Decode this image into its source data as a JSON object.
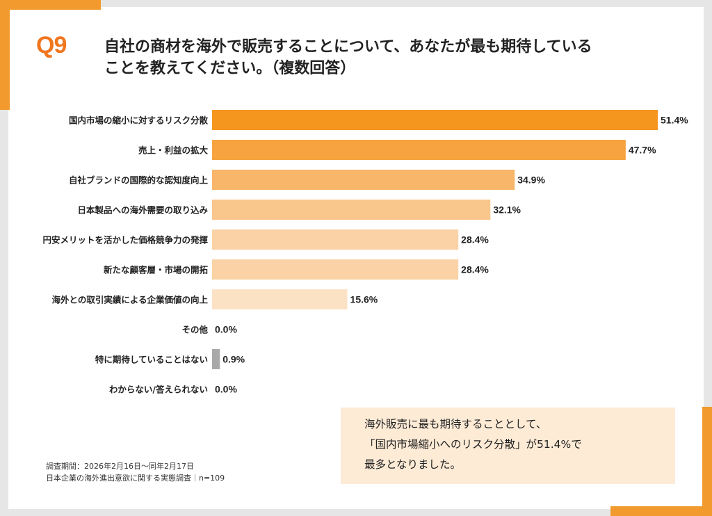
{
  "colors": {
    "accent": "#f29a2e",
    "question_number": "#f0761e",
    "bar_shades": [
      "#f5961f",
      "#f6a340",
      "#f7b669",
      "#f9c68c",
      "#fad2a6",
      "#fad2a6",
      "#fce2c5",
      "#f2e2cf",
      "#a9a9a9",
      "#f2e2cf"
    ],
    "note_background": "#fdebd6"
  },
  "header": {
    "question_number": "Q9",
    "question_line1": "自社の商材を海外で販売することについて、あなたが最も期待している",
    "question_line2": "ことを教えてください。（複数回答）"
  },
  "chart_data": {
    "type": "bar",
    "orientation": "horizontal",
    "categories": [
      "国内市場の縮小に対するリスク分散",
      "売上・利益の拡大",
      "自社ブランドの国際的な認知度向上",
      "日本製品への海外需要の取り込み",
      "円安メリットを活かした価格競争力の発揮",
      "新たな顧客層・市場の開拓",
      "海外との取引実績による企業価値の向上",
      "その他",
      "特に期待していることはない",
      "わからない/答えられない"
    ],
    "values": [
      51.4,
      47.7,
      34.9,
      32.1,
      28.4,
      28.4,
      15.6,
      0.0,
      0.9,
      0.0
    ],
    "value_labels": [
      "51.4%",
      "47.7%",
      "34.9%",
      "32.1%",
      "28.4%",
      "28.4%",
      "15.6%",
      "0.0%",
      "0.9%",
      "0.0%"
    ],
    "unit": "%",
    "xlim": [
      0,
      51.4
    ],
    "grid": false,
    "legend": "none"
  },
  "note": {
    "line1": "海外販売に最も期待することとして、",
    "line2": "「国内市場縮小へのリスク分散」が51.4%で",
    "line3": "最多となりました。"
  },
  "survey": {
    "period": "調査期間：2026年2月16日～同年2月17日",
    "title": "日本企業の海外進出意欲に関する実態調査｜n=109"
  }
}
